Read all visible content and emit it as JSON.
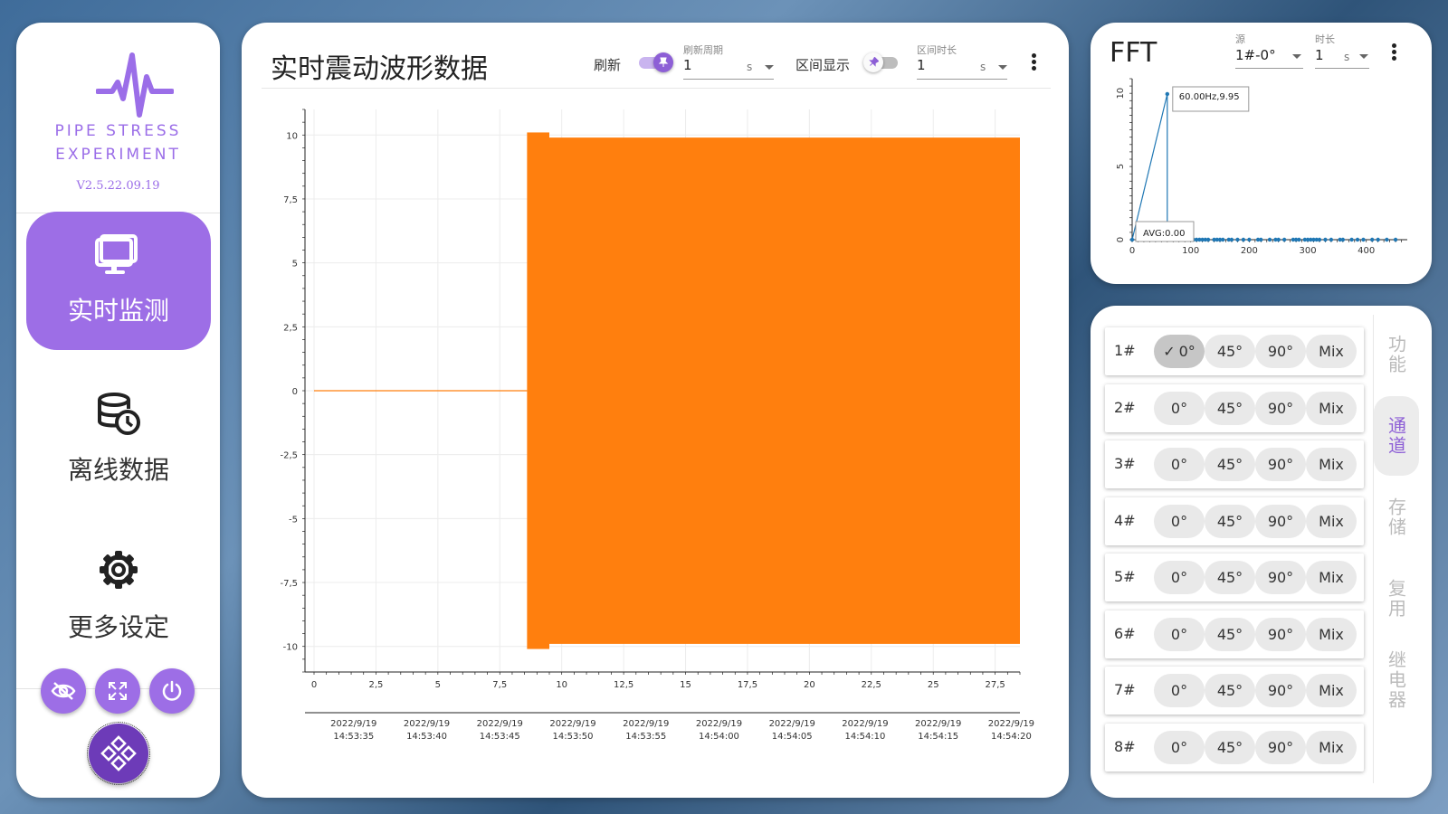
{
  "sidebar": {
    "brand_line1": "PIPE STRESS",
    "brand_line2": "EXPERIMENT",
    "version": "V2.5.22.09.19",
    "nav": [
      {
        "label": "实时监测",
        "icon": "monitor-icon",
        "active": true
      },
      {
        "label": "离线数据",
        "icon": "database-clock-icon",
        "active": false
      },
      {
        "label": "更多设定",
        "icon": "gear-icon",
        "active": false
      }
    ],
    "bottom_buttons": [
      "eye-off-icon",
      "fullscreen-icon",
      "power-icon"
    ],
    "fab_icon": "controller-icon"
  },
  "main": {
    "title": "实时震动波形数据",
    "refresh_label": "刷新",
    "refresh_on": true,
    "period_caption": "刷新周期",
    "period_value": "1",
    "period_unit": "s",
    "range_label": "区间显示",
    "range_on": false,
    "duration_caption": "区间时长",
    "duration_value": "1",
    "duration_unit": "s"
  },
  "fft": {
    "title": "FFT",
    "source_caption": "源",
    "source_value": "1#-0°",
    "duration_caption": "时长",
    "duration_value": "1",
    "duration_unit": "s"
  },
  "channels": {
    "rows": [
      {
        "label": "1#",
        "options": [
          "0°",
          "45°",
          "90°",
          "Mix"
        ],
        "selected": 0
      },
      {
        "label": "2#",
        "options": [
          "0°",
          "45°",
          "90°",
          "Mix"
        ],
        "selected": -1
      },
      {
        "label": "3#",
        "options": [
          "0°",
          "45°",
          "90°",
          "Mix"
        ],
        "selected": -1
      },
      {
        "label": "4#",
        "options": [
          "0°",
          "45°",
          "90°",
          "Mix"
        ],
        "selected": -1
      },
      {
        "label": "5#",
        "options": [
          "0°",
          "45°",
          "90°",
          "Mix"
        ],
        "selected": -1
      },
      {
        "label": "6#",
        "options": [
          "0°",
          "45°",
          "90°",
          "Mix"
        ],
        "selected": -1
      },
      {
        "label": "7#",
        "options": [
          "0°",
          "45°",
          "90°",
          "Mix"
        ],
        "selected": -1
      },
      {
        "label": "8#",
        "options": [
          "0°",
          "45°",
          "90°",
          "Mix"
        ],
        "selected": -1
      }
    ],
    "side_tabs": [
      {
        "label": "功能",
        "active": false
      },
      {
        "label": "通道",
        "active": true
      },
      {
        "label": "存储",
        "active": false
      },
      {
        "label": "复用",
        "active": false
      },
      {
        "label": "继电器",
        "active": false
      }
    ]
  },
  "colors": {
    "accent": "#9d6ee6",
    "accent_dark": "#6d3bb8",
    "wave": "#ff7f0e",
    "fft_line": "#1f77b4"
  },
  "chart_data": [
    {
      "type": "line",
      "title": "",
      "xlabel": "",
      "ylabel": "",
      "xlim": [
        0,
        28.5
      ],
      "ylim": [
        -11,
        11
      ],
      "x_ticks": [
        0,
        2.5,
        5,
        7.5,
        10,
        12.5,
        15,
        17.5,
        20,
        22.5,
        25,
        27.5
      ],
      "x_tick_labels": [
        "0",
        "2,5",
        "5",
        "7,5",
        "10",
        "12,5",
        "15",
        "17,5",
        "20",
        "22,5",
        "25",
        "27,5"
      ],
      "y_ticks": [
        10,
        7.5,
        5,
        2.5,
        0,
        -2.5,
        -5,
        -7.5,
        -10
      ],
      "y_tick_labels": [
        "10",
        "7,5",
        "5",
        "2,5",
        "0",
        "-2,5",
        "-5",
        "-7,5",
        "-10"
      ],
      "time_axis_labels": [
        [
          "2022/9/19",
          "14:53:35"
        ],
        [
          "2022/9/19",
          "14:53:40"
        ],
        [
          "2022/9/19",
          "14:53:45"
        ],
        [
          "2022/9/19",
          "14:53:50"
        ],
        [
          "2022/9/19",
          "14:53:55"
        ],
        [
          "2022/9/19",
          "14:54:00"
        ],
        [
          "2022/9/19",
          "14:54:05"
        ],
        [
          "2022/9/19",
          "14:54:10"
        ],
        [
          "2022/9/19",
          "14:54:15"
        ],
        [
          "2022/9/19",
          "14:54:20"
        ]
      ],
      "time_axis_x": [
        1.6,
        4.55,
        7.5,
        10.45,
        13.4,
        16.35,
        19.3,
        22.25,
        25.2,
        28.15
      ],
      "series": [
        {
          "color": "#ff7f0e",
          "segments": [
            {
              "kind": "flat",
              "x_start": 0,
              "x_end": 8.6,
              "value": 0
            },
            {
              "kind": "oscillation",
              "x_start": 8.6,
              "x_end": 9.5,
              "max": 10.1,
              "min": -10.1
            },
            {
              "kind": "oscillation",
              "x_start": 9.5,
              "x_end": 28.5,
              "max": 9.9,
              "min": -9.9
            }
          ]
        }
      ],
      "grid": true
    },
    {
      "type": "scatter",
      "title": "FFT",
      "xlim": [
        0,
        470
      ],
      "ylim": [
        0,
        11
      ],
      "x_ticks": [
        0,
        100,
        200,
        300,
        400
      ],
      "y_ticks": [
        0,
        5,
        10
      ],
      "peak": {
        "x": 60,
        "y": 9.95,
        "label": "60.00Hz,9.95"
      },
      "avg_label": "AVG:0.00",
      "points_x": [
        0,
        10,
        20,
        30,
        40,
        50,
        60,
        70,
        80,
        90,
        105,
        110,
        115,
        120,
        125,
        130,
        140,
        145,
        150,
        155,
        165,
        170,
        180,
        190,
        200,
        215,
        220,
        235,
        245,
        250,
        260,
        275,
        280,
        285,
        295,
        300,
        305,
        310,
        315,
        320,
        330,
        340,
        355,
        360,
        375,
        385,
        395,
        410,
        420,
        435,
        450
      ],
      "points_y": [
        0,
        0,
        0,
        0,
        0,
        0,
        9.95,
        0,
        0,
        0,
        0,
        0,
        0,
        0,
        0,
        0,
        0,
        0,
        0,
        0,
        0,
        0,
        0,
        0,
        0,
        0,
        0,
        0,
        0,
        0,
        0,
        0,
        0,
        0,
        0,
        0,
        0,
        0,
        0,
        0,
        0,
        0,
        0,
        0,
        0,
        0,
        0,
        0,
        0,
        0,
        0
      ],
      "grid": false
    }
  ]
}
